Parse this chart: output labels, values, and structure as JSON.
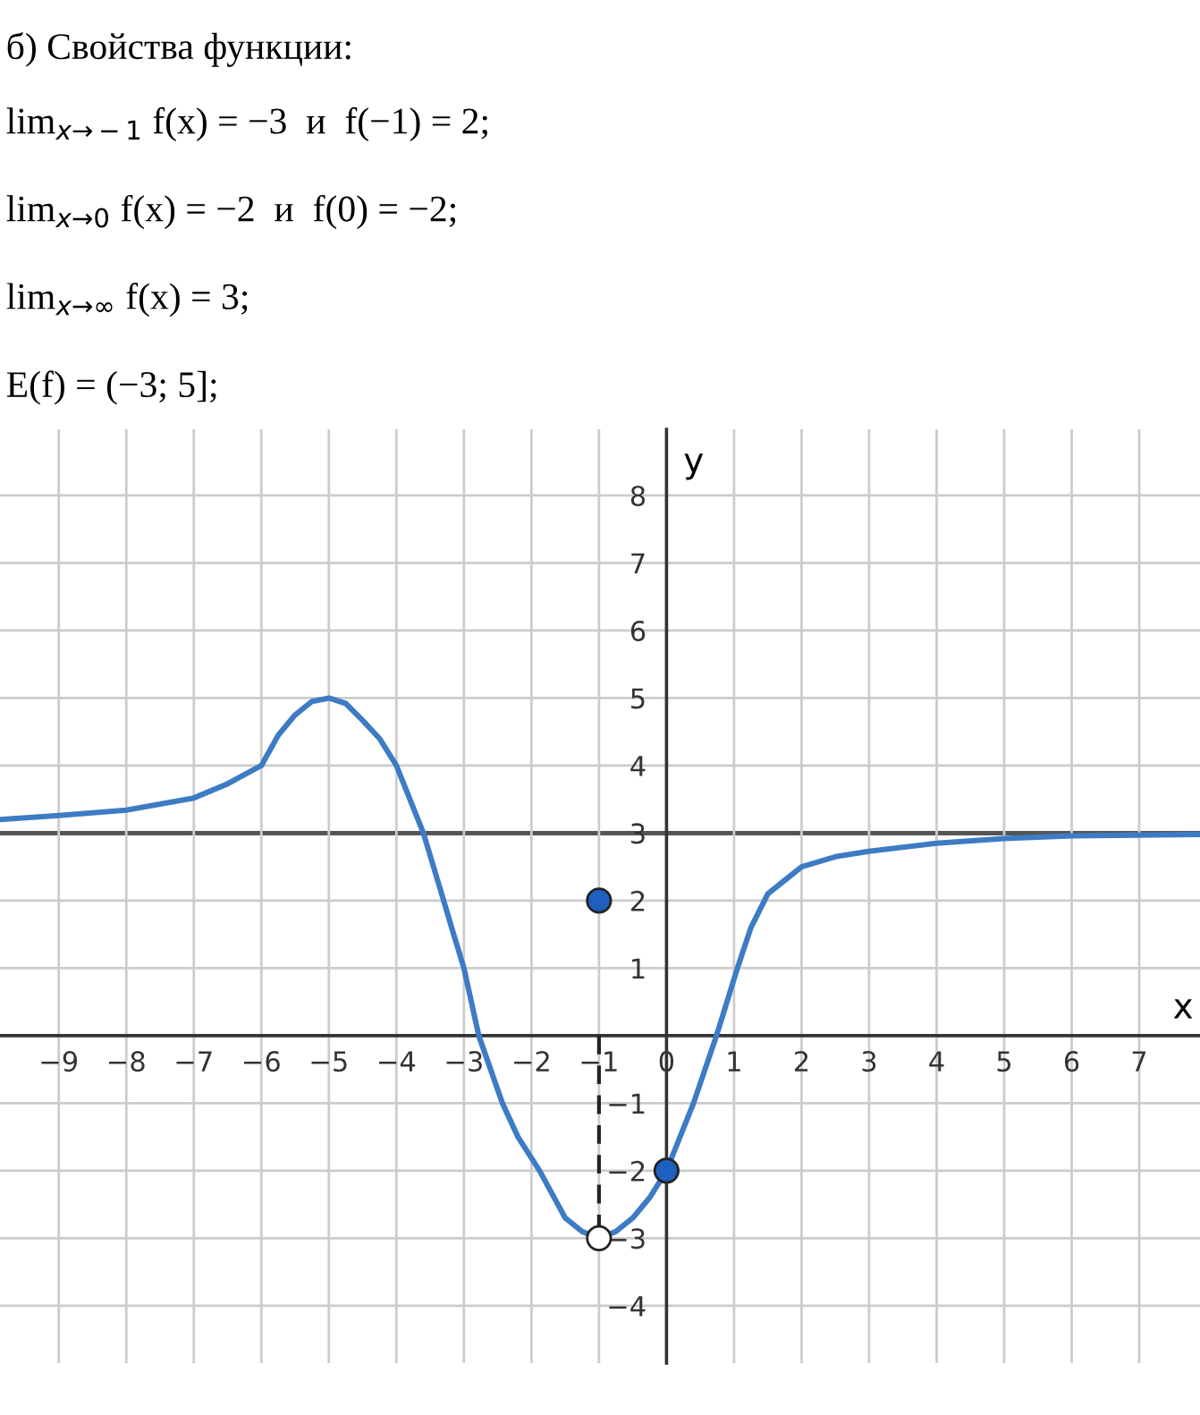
{
  "chart_data": {
    "type": "line",
    "title": "б) Свойства функции:",
    "annotations": [
      "lim$_{x→−1}$ f(x) = −3  и  f(−1) = 2;",
      "lim$_{x→0}$ f(x) = −2  и  f(0) = −2;",
      "lim$_{x→∞}$ f(x) = 3;",
      "E(f) = (−3; 5];"
    ],
    "xlabel": "x",
    "ylabel": "y",
    "series": [
      {
        "color": "#3d7cc4",
        "x": [
          -9.87,
          -9,
          -8,
          -7,
          -6.5,
          -6,
          -5.75,
          -5.5,
          -5.25,
          -5,
          -4.75,
          -4.5,
          -4.25,
          -4,
          -3.6,
          -3.3,
          -3.17,
          -3,
          -2.78,
          -2.43,
          -2.2,
          -1.88,
          -1.5,
          -1.25,
          -1,
          -0.75,
          -0.5,
          -0.25,
          0,
          0.4,
          0.74,
          1.05,
          1.25,
          1.5,
          1.75,
          2,
          2.5,
          3,
          4,
          5,
          6,
          7.9
        ],
        "values": [
          3.2,
          3.26,
          3.34,
          3.52,
          3.73,
          4.0,
          4.45,
          4.75,
          4.95,
          5.0,
          4.92,
          4.67,
          4.4,
          4.0,
          3.0,
          2.0,
          1.56,
          1.0,
          0,
          -1,
          -1.5,
          -2,
          -2.7,
          -2.9,
          -3,
          -2.9,
          -2.7,
          -2.4,
          -2,
          -1,
          0,
          1,
          1.6,
          2.1,
          2.3,
          2.5,
          2.65,
          2.73,
          2.85,
          2.92,
          2.96,
          2.98
        ]
      },
      {
        "type": "line",
        "color": "#222222",
        "line_style": "dashed",
        "x": [
          -1,
          -1
        ],
        "values": [
          0,
          -3
        ]
      },
      {
        "type": "scatter",
        "marker": "circle",
        "x": [
          -1,
          0,
          -1
        ],
        "values": [
          2,
          -2,
          -3
        ],
        "colors": [
          "#1f5fbf",
          "#1f5fbf",
          "#ffffff"
        ]
      }
    ],
    "ref_lines": [
      {
        "axis": "y",
        "value": 3,
        "color": "#555555"
      }
    ],
    "xlim": [
      -9.87,
      7.9
    ],
    "ylim": [
      -4.85,
      8.98
    ],
    "xticks": [
      -9,
      -8,
      -7,
      -6,
      -5,
      -4,
      -3,
      -2,
      -1,
      0,
      1,
      2,
      3,
      4,
      5,
      6,
      7
    ],
    "yticks": [
      -4,
      -3,
      -2,
      -1,
      1,
      2,
      3,
      4,
      5,
      6,
      7,
      8
    ],
    "grid": true
  }
}
